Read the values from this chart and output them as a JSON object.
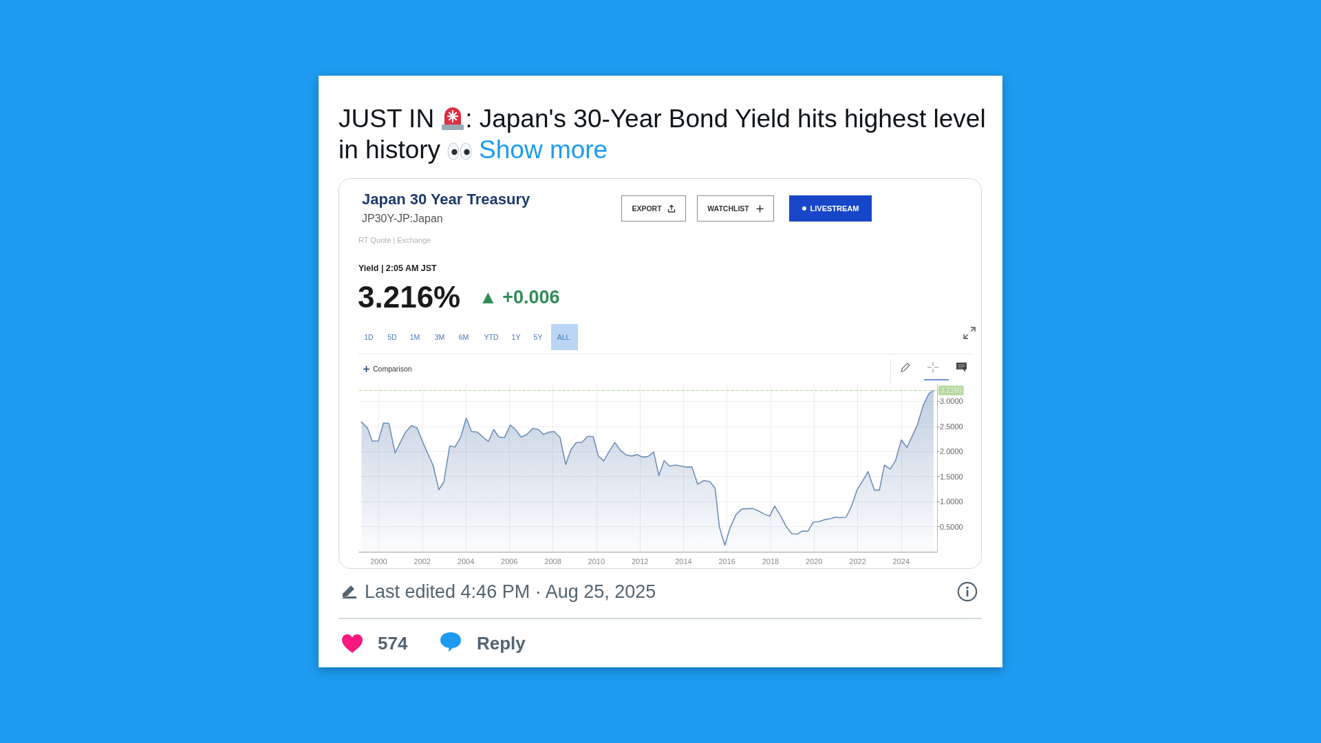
{
  "chart_data": {
    "type": "area",
    "title": "Japan 30 Year Treasury",
    "subtitle": "JP30Y-JP:Japan",
    "x": [
      1999.21,
      1999.48,
      1999.7,
      1999.98,
      2000.22,
      2000.47,
      2000.75,
      2001.22,
      2001.5,
      2001.76,
      2002.08,
      2002.5,
      2002.76,
      2002.99,
      2003.26,
      2003.5,
      2003.76,
      2004.02,
      2004.26,
      2004.52,
      2004.81,
      2005.04,
      2005.28,
      2005.52,
      2005.78,
      2006.04,
      2006.28,
      2006.54,
      2006.8,
      2007.07,
      2007.33,
      2007.57,
      2007.83,
      2008.06,
      2008.33,
      2008.59,
      2008.83,
      2009.08,
      2009.33,
      2009.59,
      2009.85,
      2010.09,
      2010.34,
      2010.58,
      2010.85,
      2011.11,
      2011.37,
      2011.63,
      2011.87,
      2012.1,
      2012.37,
      2012.63,
      2012.87,
      2013.11,
      2013.36,
      2013.63,
      2013.89,
      2014.12,
      2014.39,
      2014.65,
      2014.94,
      2015.21,
      2015.45,
      2015.65,
      2015.9,
      2016.15,
      2016.41,
      2016.67,
      2016.93,
      2017.2,
      2017.46,
      2017.72,
      2017.96,
      2018.19,
      2018.46,
      2018.72,
      2018.98,
      2019.22,
      2019.45,
      2019.72,
      2019.96,
      2020.21,
      2020.48,
      2020.74,
      2020.98,
      2021.22,
      2021.47,
      2021.71,
      2021.98,
      2022.24,
      2022.48,
      2022.77,
      2023.0,
      2023.23,
      2023.5,
      2023.74,
      2024.01,
      2024.27,
      2024.49,
      2024.75,
      2025.02,
      2025.28,
      2025.49
    ],
    "values": [
      2.59,
      2.47,
      2.21,
      2.21,
      2.57,
      2.56,
      1.97,
      2.38,
      2.52,
      2.47,
      2.13,
      1.72,
      1.24,
      1.39,
      2.11,
      2.09,
      2.28,
      2.67,
      2.4,
      2.39,
      2.28,
      2.2,
      2.44,
      2.29,
      2.28,
      2.53,
      2.44,
      2.29,
      2.34,
      2.46,
      2.44,
      2.34,
      2.39,
      2.4,
      2.28,
      1.74,
      2.04,
      2.18,
      2.18,
      2.3,
      2.3,
      1.91,
      1.81,
      2.0,
      2.18,
      2.02,
      1.93,
      1.91,
      1.94,
      1.89,
      1.9,
      1.99,
      1.52,
      1.82,
      1.71,
      1.73,
      1.71,
      1.69,
      1.69,
      1.35,
      1.42,
      1.4,
      1.27,
      0.49,
      0.13,
      0.49,
      0.74,
      0.85,
      0.86,
      0.86,
      0.81,
      0.75,
      0.71,
      0.91,
      0.72,
      0.5,
      0.36,
      0.35,
      0.41,
      0.41,
      0.59,
      0.6,
      0.64,
      0.66,
      0.69,
      0.68,
      0.69,
      0.9,
      1.24,
      1.42,
      1.6,
      1.23,
      1.23,
      1.73,
      1.65,
      1.82,
      2.23,
      2.08,
      2.29,
      2.54,
      2.93,
      3.16,
      3.216
    ],
    "color": "#6f8fb8",
    "xlim": [
      1999.1,
      2025.65
    ],
    "xticks": [
      2000,
      2002,
      2004,
      2006,
      2008,
      2010,
      2012,
      2014,
      2016,
      2018,
      2020,
      2022,
      2024
    ],
    "ylim": [
      0,
      3.35
    ],
    "yticks": [
      {
        "value": 0.5,
        "label": "0.5000"
      },
      {
        "value": 1,
        "label": "1.0000"
      },
      {
        "value": 1.5,
        "label": "1.5000"
      },
      {
        "value": 2,
        "label": "2.0000"
      },
      {
        "value": 2.5,
        "label": "2.5000"
      },
      {
        "value": 3,
        "label": "3.0000"
      }
    ],
    "grid": true,
    "marker": "none",
    "ref_lines": [
      {
        "axis": "y",
        "value": 3.216,
        "label": "3.2160",
        "color": "#8cc56a",
        "line_style": "dashed"
      }
    ],
    "annotations": [
      "JUST IN",
      ": Japan's 30-Year Bond Yield hits highest level in history",
      "Show more",
      "EXPORT",
      "WATCHLIST",
      "LIVESTREAM",
      "RT Quote | Exchange",
      "Yield | 2:05 AM JST",
      "3.216%",
      "▲ +0.006",
      "1D",
      "5D",
      "1M",
      "3M",
      "6M",
      "YTD",
      "1Y",
      "5Y",
      "ALL",
      "Comparison",
      "Last edited 4:46 PM · Aug 25, 2025",
      "574",
      "Reply"
    ]
  }
}
